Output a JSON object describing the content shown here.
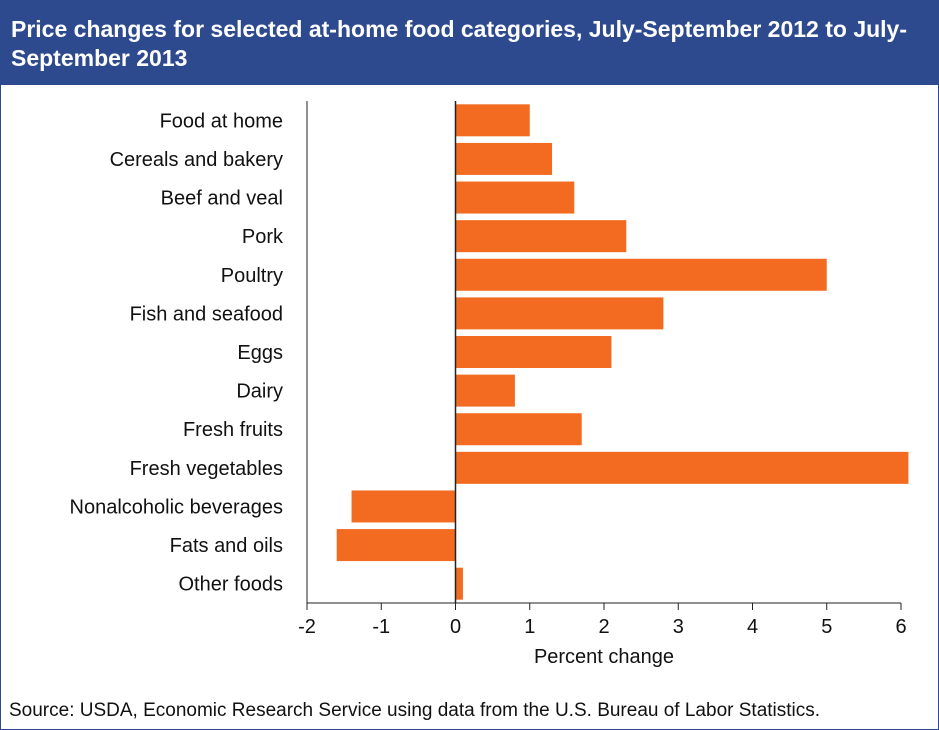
{
  "chart_data": {
    "type": "bar",
    "orientation": "horizontal",
    "title": "Price changes for selected at-home food categories, July-September 2012 to July-September 2013",
    "categories": [
      "Food at home",
      "Cereals and bakery",
      "Beef and veal",
      "Pork",
      "Poultry",
      "Fish and seafood",
      "Eggs",
      "Dairy",
      "Fresh fruits",
      "Fresh vegetables",
      "Nonalcoholic beverages",
      "Fats and oils",
      "Other foods"
    ],
    "values": [
      1.0,
      1.3,
      1.6,
      2.3,
      5.0,
      2.8,
      2.1,
      0.8,
      1.7,
      6.1,
      -1.4,
      -1.6,
      0.1
    ],
    "xlabel": "Percent change",
    "ylabel": "",
    "xlim": [
      -2,
      6
    ],
    "xticks": [
      -2,
      -1,
      0,
      1,
      2,
      3,
      4,
      5,
      6
    ],
    "xtick_labels": [
      "-2",
      "-1",
      "0",
      "1",
      "2",
      "3",
      "4",
      "5",
      "6"
    ],
    "grid": false,
    "bar_color": "#f26b21",
    "source": "Source: USDA, Economic Research Service using data from the U.S. Bureau of Labor Statistics."
  },
  "colors": {
    "header_bg": "#2e4a8f",
    "header_text": "#ffffff",
    "bar": "#f26b21"
  }
}
